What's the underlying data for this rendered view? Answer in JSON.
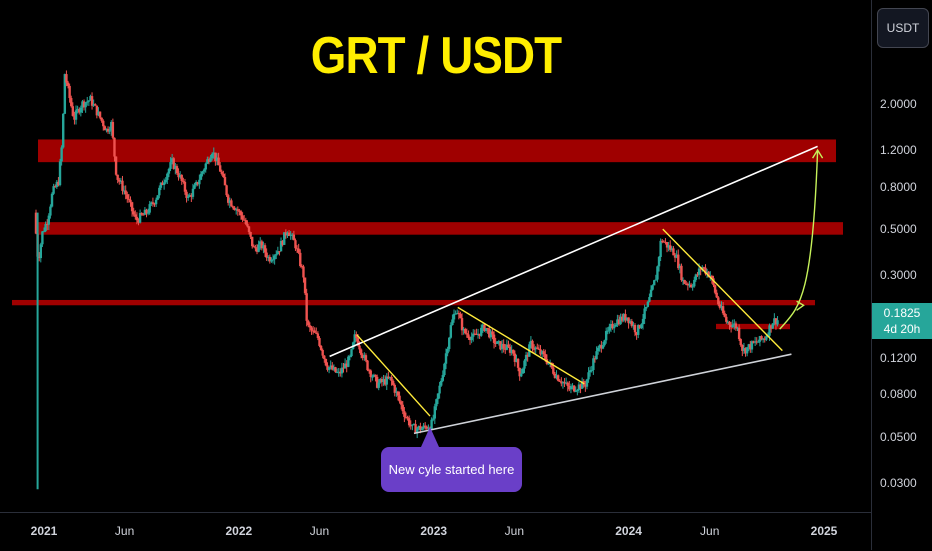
{
  "chart_data": {
    "type": "candlestick",
    "title": "GRT / USDT",
    "currency": "USDT",
    "y_scale": "log",
    "ylim": [
      0.025,
      4.0
    ],
    "xlim": [
      "2021-01-01",
      "2025-01-31"
    ],
    "current_price": "0.1825",
    "countdown": "4d 20h",
    "y_ticks": [
      "2.0000",
      "1.2000",
      "0.8000",
      "0.5000",
      "0.3000",
      "0.1200",
      "0.0800",
      "0.0500",
      "0.0300"
    ],
    "x_ticks": [
      {
        "label": "2021",
        "date": "2021-01-01",
        "year": true
      },
      {
        "label": "Jun",
        "date": "2021-06-01",
        "year": false
      },
      {
        "label": "2022",
        "date": "2022-01-01",
        "year": true
      },
      {
        "label": "Jun",
        "date": "2022-06-01",
        "year": false
      },
      {
        "label": "2023",
        "date": "2023-01-01",
        "year": true
      },
      {
        "label": "Jun",
        "date": "2023-06-01",
        "year": false
      },
      {
        "label": "2024",
        "date": "2024-01-01",
        "year": true
      },
      {
        "label": "Jun",
        "date": "2024-06-01",
        "year": false
      },
      {
        "label": "2025",
        "date": "2025-01-01",
        "year": true
      }
    ],
    "price_path": [
      [
        "2020-12-17",
        0.6
      ],
      [
        "2020-12-24",
        0.35
      ],
      [
        "2021-01-01",
        0.48
      ],
      [
        "2021-01-10",
        0.55
      ],
      [
        "2021-01-20",
        0.75
      ],
      [
        "2021-01-31",
        0.85
      ],
      [
        "2021-02-07",
        1.3
      ],
      [
        "2021-02-12",
        2.8
      ],
      [
        "2021-02-20",
        2.2
      ],
      [
        "2021-03-01",
        1.7
      ],
      [
        "2021-03-15",
        2.0
      ],
      [
        "2021-04-01",
        2.1
      ],
      [
        "2021-04-15",
        1.8
      ],
      [
        "2021-05-01",
        1.5
      ],
      [
        "2021-05-10",
        1.6
      ],
      [
        "2021-05-20",
        0.9
      ],
      [
        "2021-06-05",
        0.75
      ],
      [
        "2021-06-25",
        0.55
      ],
      [
        "2021-07-15",
        0.6
      ],
      [
        "2021-08-01",
        0.7
      ],
      [
        "2021-08-15",
        0.85
      ],
      [
        "2021-09-01",
        1.05
      ],
      [
        "2021-09-15",
        0.9
      ],
      [
        "2021-10-01",
        0.7
      ],
      [
        "2021-10-15",
        0.8
      ],
      [
        "2021-11-01",
        1.0
      ],
      [
        "2021-11-15",
        1.2
      ],
      [
        "2021-12-01",
        0.95
      ],
      [
        "2021-12-15",
        0.7
      ],
      [
        "2022-01-01",
        0.62
      ],
      [
        "2022-01-15",
        0.55
      ],
      [
        "2022-02-01",
        0.4
      ],
      [
        "2022-02-15",
        0.42
      ],
      [
        "2022-03-01",
        0.36
      ],
      [
        "2022-03-20",
        0.4
      ],
      [
        "2022-04-05",
        0.5
      ],
      [
        "2022-04-20",
        0.42
      ],
      [
        "2022-05-05",
        0.3
      ],
      [
        "2022-05-12",
        0.17
      ],
      [
        "2022-06-01",
        0.15
      ],
      [
        "2022-06-18",
        0.11
      ],
      [
        "2022-07-10",
        0.1
      ],
      [
        "2022-08-01",
        0.12
      ],
      [
        "2022-08-10",
        0.155
      ],
      [
        "2022-09-01",
        0.11
      ],
      [
        "2022-09-20",
        0.09
      ],
      [
        "2022-10-15",
        0.095
      ],
      [
        "2022-11-10",
        0.065
      ],
      [
        "2022-11-25",
        0.055
      ],
      [
        "2022-12-15",
        0.055
      ],
      [
        "2023-01-01",
        0.058
      ],
      [
        "2023-01-20",
        0.1
      ],
      [
        "2023-02-05",
        0.17
      ],
      [
        "2023-02-15",
        0.21
      ],
      [
        "2023-03-01",
        0.16
      ],
      [
        "2023-03-20",
        0.15
      ],
      [
        "2023-04-10",
        0.17
      ],
      [
        "2023-05-01",
        0.14
      ],
      [
        "2023-06-01",
        0.13
      ],
      [
        "2023-06-15",
        0.1
      ],
      [
        "2023-07-05",
        0.14
      ],
      [
        "2023-08-01",
        0.12
      ],
      [
        "2023-08-20",
        0.1
      ],
      [
        "2023-09-15",
        0.085
      ],
      [
        "2023-10-15",
        0.09
      ],
      [
        "2023-11-01",
        0.12
      ],
      [
        "2023-11-20",
        0.15
      ],
      [
        "2023-12-10",
        0.18
      ],
      [
        "2024-01-01",
        0.19
      ],
      [
        "2024-01-20",
        0.16
      ],
      [
        "2024-02-10",
        0.22
      ],
      [
        "2024-02-25",
        0.3
      ],
      [
        "2024-03-05",
        0.45
      ],
      [
        "2024-03-15",
        0.42
      ],
      [
        "2024-04-01",
        0.38
      ],
      [
        "2024-04-15",
        0.28
      ],
      [
        "2024-05-01",
        0.27
      ],
      [
        "2024-05-20",
        0.33
      ],
      [
        "2024-06-05",
        0.3
      ],
      [
        "2024-06-20",
        0.22
      ],
      [
        "2024-07-05",
        0.18
      ],
      [
        "2024-07-25",
        0.17
      ],
      [
        "2024-08-05",
        0.13
      ],
      [
        "2024-08-25",
        0.14
      ],
      [
        "2024-09-15",
        0.15
      ],
      [
        "2024-09-30",
        0.18
      ],
      [
        "2024-10-07",
        0.1825
      ]
    ],
    "resistance_zones": [
      {
        "from": 1.05,
        "to": 1.35
      },
      {
        "from": 0.47,
        "to": 0.54
      },
      {
        "from": 0.215,
        "to": 0.228
      },
      {
        "from": 0.165,
        "to": 0.175
      }
    ],
    "support_line": {
      "start": [
        "2022-11-25",
        0.052
      ],
      "end": [
        "2024-11-01",
        0.125
      ]
    },
    "upper_channel_line": {
      "start": [
        "2022-06-20",
        0.122
      ],
      "end": [
        "2024-12-20",
        1.25
      ]
    },
    "descending_lines": [
      {
        "start": [
          "2022-08-10",
          0.155
        ],
        "end": [
          "2022-12-25",
          0.063
        ]
      },
      {
        "start": [
          "2023-02-15",
          0.21
        ],
        "end": [
          "2023-10-10",
          0.09
        ]
      },
      {
        "start": [
          "2024-03-05",
          0.5
        ],
        "end": [
          "2024-10-15",
          0.13
        ]
      }
    ],
    "projection_path": [
      [
        "2024-10-10",
        0.165
      ],
      [
        "2024-11-15",
        0.21
      ],
      [
        "2024-12-10",
        0.35
      ],
      [
        "2024-12-20",
        1.2
      ]
    ],
    "callout": {
      "text": "New cyle started here"
    },
    "colors": {
      "up": "#26a69a",
      "down": "#ef5350",
      "zone": "#a80000",
      "title": "#ffee00",
      "trend_yellow": "#ffeb3b",
      "channel_white": "#ffffff",
      "projection": "#c6f25a",
      "callout_bg": "#6a3fc8"
    }
  }
}
